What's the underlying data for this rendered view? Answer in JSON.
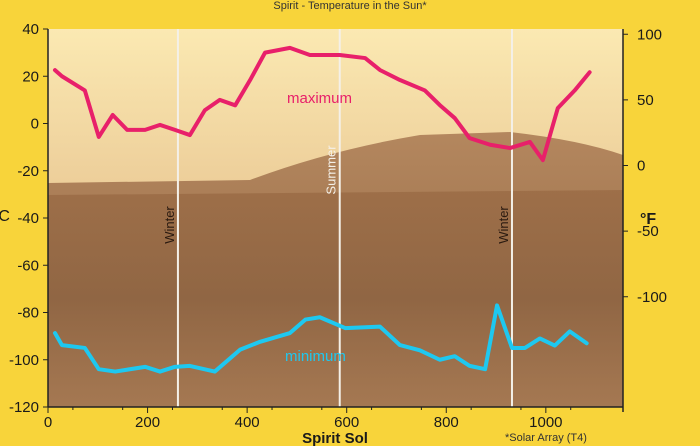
{
  "chart_data": {
    "type": "line",
    "title": "Spirit - Temperature in the Sun*",
    "xlabel": "Spirit Sol",
    "ylabel_left": "°C",
    "ylabel_right": "°F",
    "footnote": "*Solar Array (T4)",
    "xlim": [
      0,
      1155
    ],
    "ylim": [
      -120,
      40
    ],
    "x_ticks": [
      0,
      200,
      400,
      600,
      800,
      1000
    ],
    "y_ticks_left": [
      40,
      20,
      0,
      -20,
      -40,
      -60,
      -80,
      -100,
      -120
    ],
    "y_ticks_right": [
      100,
      50,
      0,
      -50,
      -100
    ],
    "grid": false,
    "season_markers": [
      {
        "label": "Winter",
        "sol": 261
      },
      {
        "label": "Summer",
        "sol": 586
      },
      {
        "label": "Winter",
        "sol": 932
      }
    ],
    "series": [
      {
        "name": "maximum",
        "color": "#e8206a",
        "x": [
          14,
          28,
          74,
          102,
          130,
          159,
          195,
          225,
          255,
          285,
          315,
          345,
          376,
          406,
          436,
          486,
          526,
          586,
          637,
          667,
          707,
          757,
          787,
          817,
          847,
          888,
          928,
          968,
          994,
          1024,
          1058,
          1088
        ],
        "y": [
          22.6,
          20,
          14,
          -5.7,
          3.6,
          -2.7,
          -2.7,
          -0.6,
          -2.7,
          -4.9,
          5.6,
          10,
          7.7,
          18.4,
          30,
          32,
          29,
          29,
          27.7,
          22.6,
          18.4,
          14,
          7.8,
          2.3,
          -6.2,
          -9,
          -10.4,
          -7.8,
          -15.5,
          6.5,
          14,
          21.7
        ]
      },
      {
        "name": "minimum",
        "color": "#1ec8f0",
        "x": [
          14,
          28,
          74,
          102,
          135,
          195,
          225,
          255,
          285,
          335,
          386,
          426,
          486,
          517,
          546,
          597,
          667,
          707,
          747,
          787,
          817,
          847,
          878,
          902,
          932,
          958,
          988,
          1018,
          1048,
          1082
        ],
        "y": [
          -88.7,
          -93.8,
          -95,
          -104,
          -105,
          -103,
          -105,
          -103,
          -102.6,
          -105,
          -95.7,
          -92.4,
          -88.7,
          -83,
          -82,
          -86.6,
          -86,
          -93.8,
          -96,
          -100,
          -98.5,
          -102.6,
          -104,
          -77,
          -95,
          -95,
          -91,
          -94,
          -88,
          -93
        ]
      }
    ]
  }
}
